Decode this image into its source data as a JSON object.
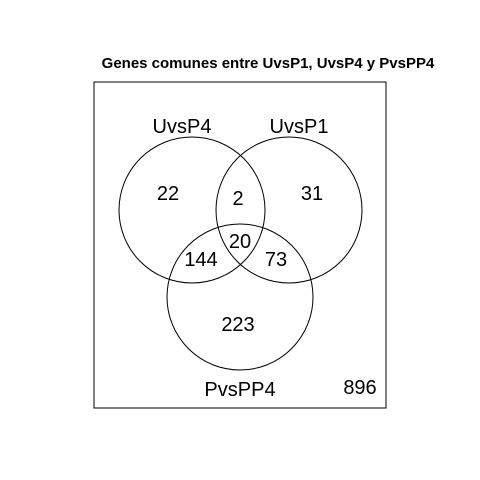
{
  "title": "Genes comunes entre UvsP1, UvsP4  y PvsPP4",
  "sets": {
    "uvsp4": "UvsP4",
    "uvsp1": "UvsP1",
    "pvspp4": "PvsPP4"
  },
  "regions": {
    "uvsp4_only": "22",
    "uvsp4_uvsp1": "2",
    "uvsp1_only": "31",
    "all_three": "20",
    "uvsp4_pvspp4": "144",
    "uvsp1_pvspp4": "73",
    "pvspp4_only": "223",
    "none": "896"
  }
}
